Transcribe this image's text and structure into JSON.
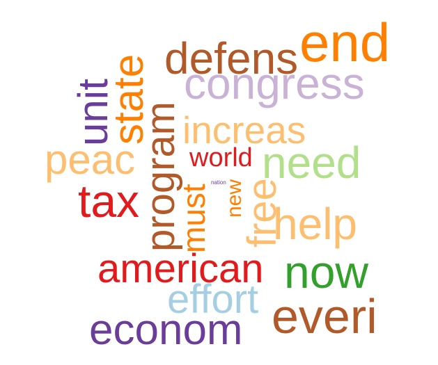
{
  "wordcloud": {
    "words": [
      {
        "text": "end",
        "color": "#ff7f00"
      },
      {
        "text": "defens",
        "color": "#b15928"
      },
      {
        "text": "congress",
        "color": "#cab2d6"
      },
      {
        "text": "unit",
        "color": "#6a3d9a"
      },
      {
        "text": "state",
        "color": "#ff7f00"
      },
      {
        "text": "program",
        "color": "#b15928"
      },
      {
        "text": "increas",
        "color": "#fdbf6f"
      },
      {
        "text": "peac",
        "color": "#fdbf6f"
      },
      {
        "text": "world",
        "color": "#e31a1c"
      },
      {
        "text": "need",
        "color": "#b2df8a"
      },
      {
        "text": "nation",
        "color": "#6a3d9a"
      },
      {
        "text": "new",
        "color": "#ff7f00"
      },
      {
        "text": "must",
        "color": "#ff7f00"
      },
      {
        "text": "free",
        "color": "#fdbf6f"
      },
      {
        "text": "tax",
        "color": "#e31a1c"
      },
      {
        "text": "help",
        "color": "#fdbf6f"
      },
      {
        "text": "american",
        "color": "#e31a1c"
      },
      {
        "text": "now",
        "color": "#33a02c"
      },
      {
        "text": "effort",
        "color": "#a6cee3"
      },
      {
        "text": "everi",
        "color": "#b15928"
      },
      {
        "text": "econom",
        "color": "#6a3d9a"
      }
    ]
  }
}
